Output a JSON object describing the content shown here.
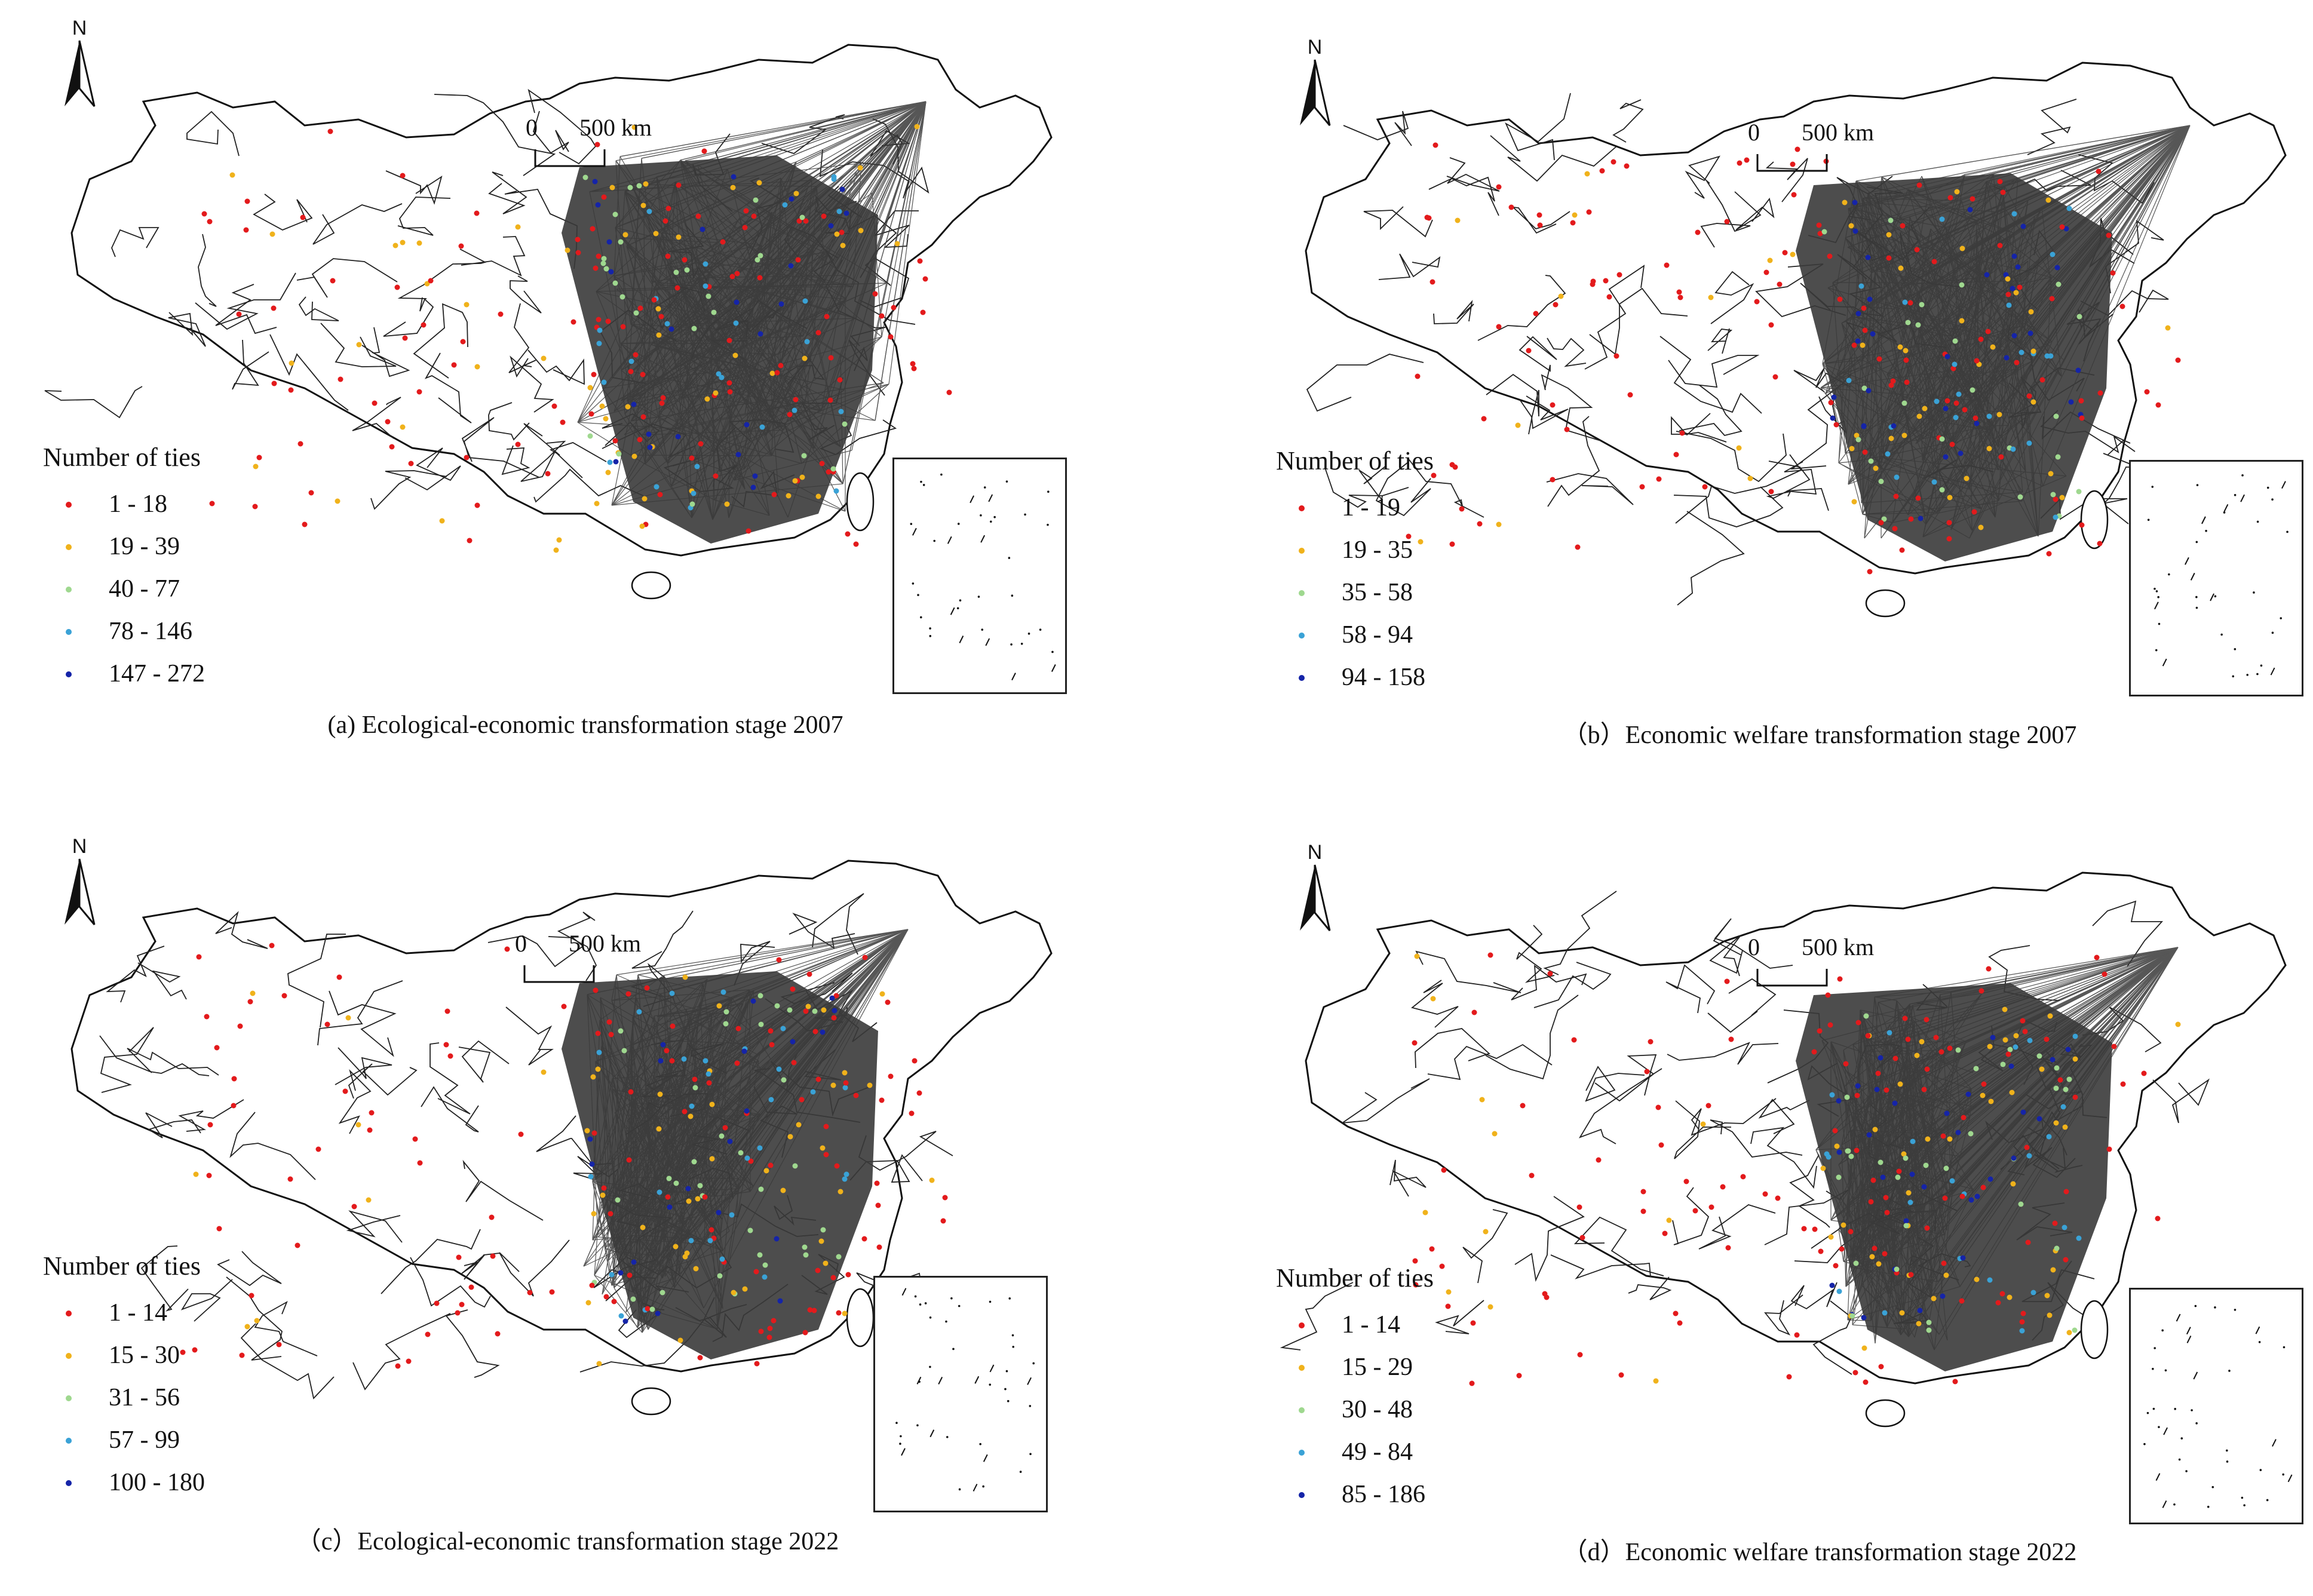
{
  "north_label": "N",
  "scale": {
    "zero": "0",
    "distance": "500 km"
  },
  "legend_title": "Number of ties",
  "class_colors": [
    "#e31a1c",
    "#f0b21b",
    "#9fd88f",
    "#3aa2d6",
    "#1524a8"
  ],
  "panels": [
    {
      "id": "a",
      "caption": "(a) Ecological-economic transformation stage 2007",
      "classes": [
        "1 - 18",
        "19 - 39",
        "40 - 77",
        "78 - 146",
        "147 - 272"
      ]
    },
    {
      "id": "b",
      "caption": "（b）Economic welfare transformation stage 2007",
      "classes": [
        "1 - 19",
        "19 - 35",
        "35 - 58",
        "58 - 94",
        "94 - 158"
      ]
    },
    {
      "id": "c",
      "caption": "（c）Ecological-economic transformation stage 2022",
      "classes": [
        "1 - 14",
        "15 - 30",
        "31 - 56",
        "57 - 99",
        "100 - 180"
      ]
    },
    {
      "id": "d",
      "caption": "（d）Economic welfare transformation stage 2022",
      "classes": [
        "1 - 14",
        "15 - 29",
        "30 - 48",
        "49 - 84",
        "85 - 186"
      ]
    }
  ]
}
